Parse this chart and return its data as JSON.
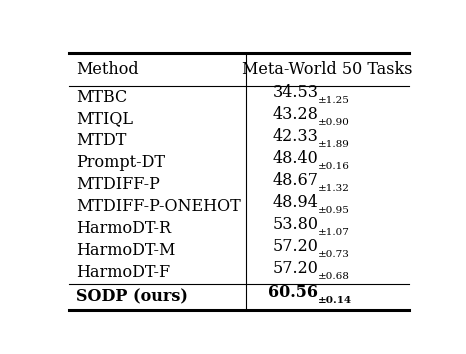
{
  "col_header": [
    "Method",
    "Meta-World 50 Tasks"
  ],
  "rows": [
    [
      "MTBC",
      "34.53",
      "1.25"
    ],
    [
      "MTIQL",
      "43.28",
      "0.90"
    ],
    [
      "MTDT",
      "42.33",
      "1.89"
    ],
    [
      "Prompt-DT",
      "48.40",
      "0.16"
    ],
    [
      "MTDIFF-P",
      "48.67",
      "1.32"
    ],
    [
      "MTDIFF-P-ONEHOT",
      "48.94",
      "0.95"
    ],
    [
      "HarmoDT-R",
      "53.80",
      "1.07"
    ],
    [
      "HarmoDT-M",
      "57.20",
      "0.73"
    ],
    [
      "HarmoDT-F",
      "57.20",
      "0.68"
    ]
  ],
  "last_row": [
    "SODP (ours)",
    "60.56",
    "0.14"
  ],
  "bg_color": "#ffffff",
  "text_color": "#000000",
  "header_fontsize": 11.5,
  "row_fontsize": 11.5,
  "sub_fontsize": 7.5,
  "bold_fontsize": 11.5,
  "bold_sub_fontsize": 7.5
}
